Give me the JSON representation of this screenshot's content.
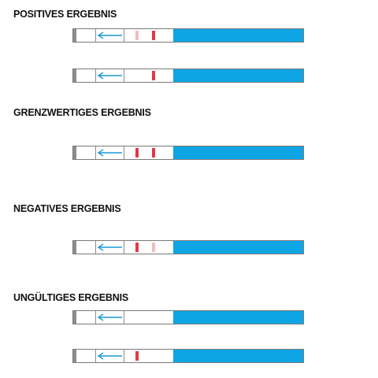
{
  "sections": [
    {
      "title": "POSITIVES ERGEBNIS",
      "strips": [
        {
          "control_line": "strong",
          "test_line": "faint"
        },
        {
          "control_line": "strong",
          "test_line": "none"
        }
      ]
    },
    {
      "title": "GRENZWERTIGES ERGEBNIS",
      "strips": [
        {
          "control_line": "strong",
          "test_line": "strong"
        }
      ]
    },
    {
      "title": "NEGATIVES ERGEBNIS",
      "strips": [
        {
          "control_line": "faint",
          "test_line": "strong"
        }
      ]
    },
    {
      "title": "UNGÜLTIGES ERGEBNIS",
      "strips": [
        {
          "control_line": "none",
          "test_line": "none"
        },
        {
          "control_line": "none",
          "test_line": "strong"
        }
      ]
    }
  ],
  "colors": {
    "sample_pad": "#0ea5e4",
    "arrow": "#1a9ad9",
    "line_strong": "#e03a45",
    "line_faint": "#f3bcbc",
    "housing_border": "#7a7a7a",
    "cap": "#8c8c8c"
  },
  "icons": {
    "flow_direction": "arrow-left-icon"
  }
}
